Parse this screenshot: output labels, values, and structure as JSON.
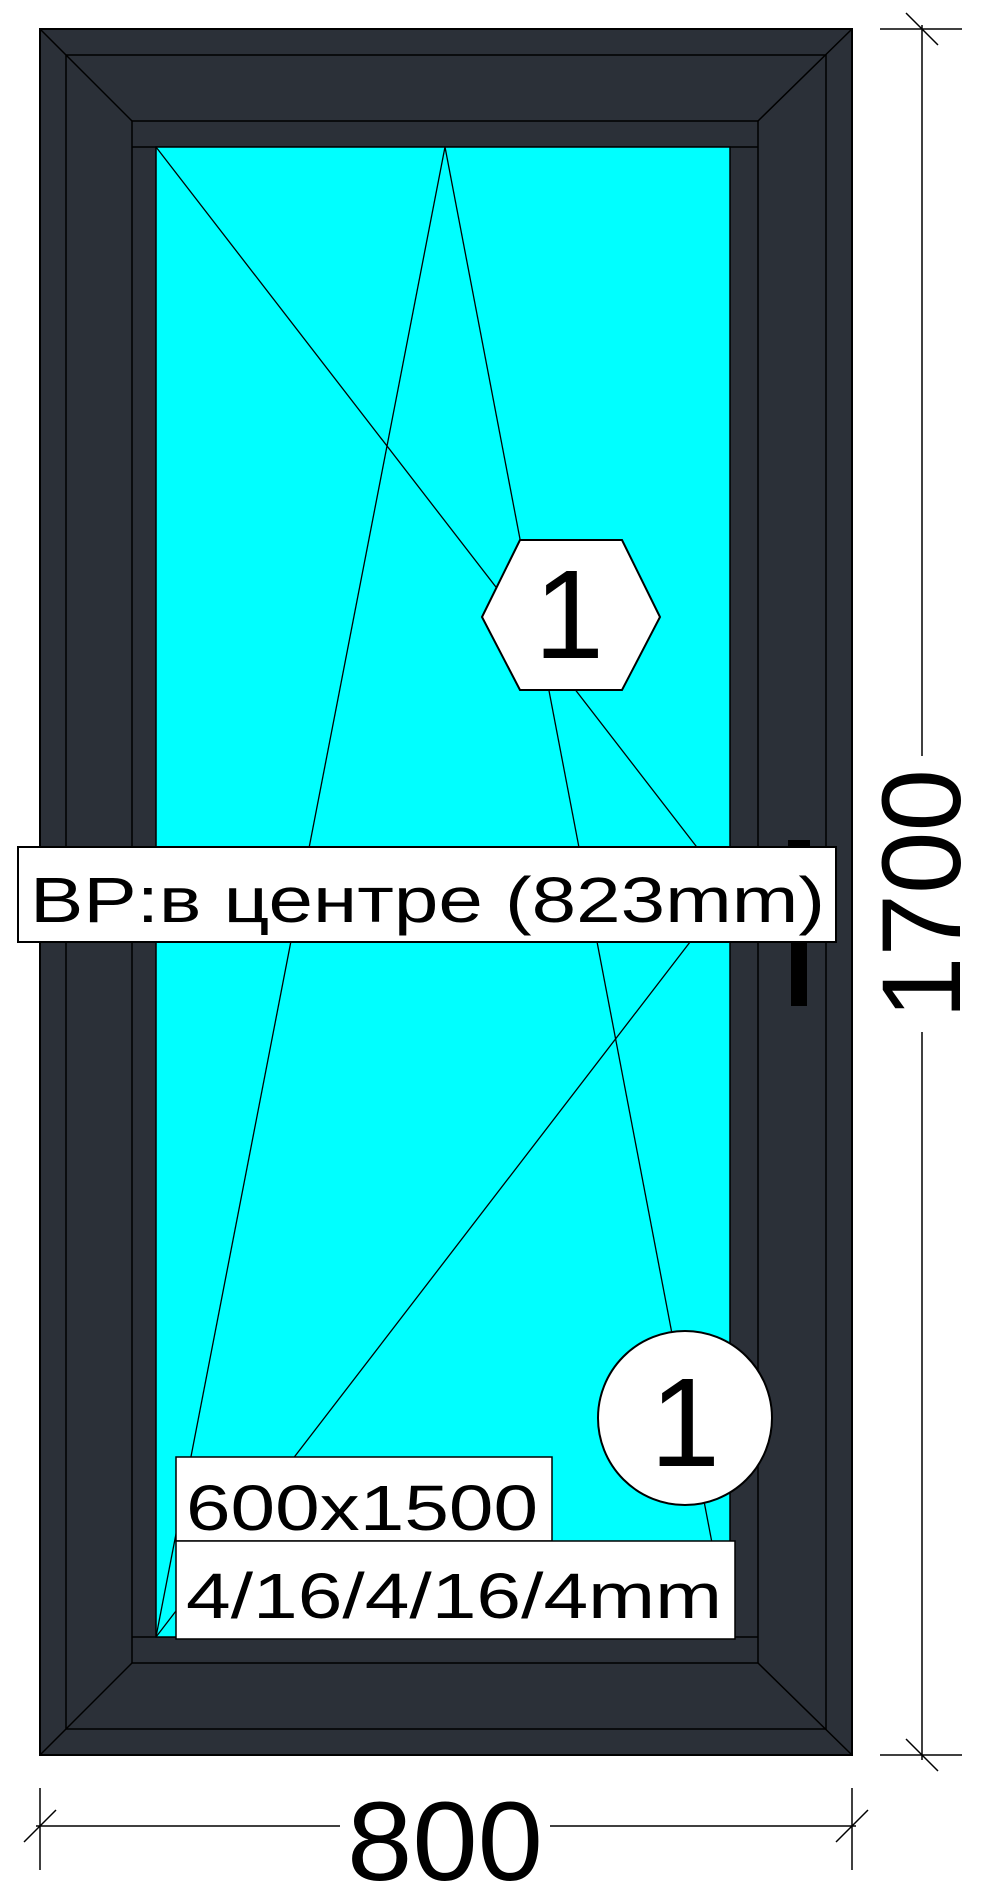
{
  "dimensions": {
    "width_label": "800",
    "height_label": "1700"
  },
  "handle_position_label": "BP:в центре (823mm)",
  "sash": {
    "number": "1",
    "glass_number": "1",
    "glass_size_label": "600x1500",
    "glass_formula_label": "4/16/4/16/4mm"
  },
  "colors": {
    "frame": "#2b3038",
    "glass": "#00ffff",
    "lines": "#000000",
    "background": "#ffffff"
  }
}
